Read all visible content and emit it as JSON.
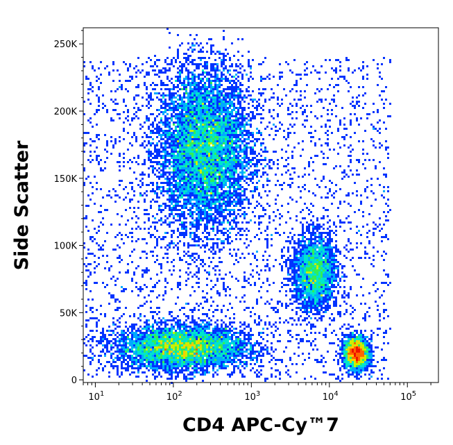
{
  "chart_data": {
    "type": "scatter",
    "subtype": "flow-cytometry-density-dot-plot",
    "title": "",
    "xlabel": "CD4 APC-Cy™7",
    "ylabel": "Side Scatter",
    "x_scale": "log",
    "xlim": [
      7,
      250000
    ],
    "ylim": [
      -2000,
      262000
    ],
    "x_ticks": [
      {
        "value": 10,
        "base": "10",
        "exp": "1"
      },
      {
        "value": 100,
        "base": "10",
        "exp": "2"
      },
      {
        "value": 1000,
        "base": "10",
        "exp": "3"
      },
      {
        "value": 10000,
        "base": "10",
        "exp": "4"
      },
      {
        "value": 100000,
        "base": "10",
        "exp": "5"
      }
    ],
    "y_ticks": [
      {
        "value": 0,
        "label": "0"
      },
      {
        "value": 50000,
        "label": "50K"
      },
      {
        "value": 100000,
        "label": "100K"
      },
      {
        "value": 150000,
        "label": "150K"
      },
      {
        "value": 200000,
        "label": "200K"
      },
      {
        "value": 250000,
        "label": "250K"
      }
    ],
    "grid": false,
    "legend": "none",
    "colormap": [
      "#0000cc",
      "#0033ff",
      "#00aaff",
      "#00e5cc",
      "#33ee55",
      "#ccee00",
      "#ffcc00",
      "#ff6600",
      "#ee1100"
    ],
    "populations": [
      {
        "x_center": 250,
        "y_center": 172000,
        "x_spread_log10": 0.3,
        "y_spread": 30000,
        "events": 9000
      },
      {
        "x_center": 130,
        "y_center": 24000,
        "x_spread_log10": 0.42,
        "y_spread": 8000,
        "events": 6000
      },
      {
        "x_center": 6500,
        "y_center": 80000,
        "x_spread_log10": 0.14,
        "y_spread": 14000,
        "events": 2600
      },
      {
        "x_center": 22000,
        "y_center": 20000,
        "x_spread_log10": 0.08,
        "y_spread": 6000,
        "events": 2200
      }
    ]
  }
}
